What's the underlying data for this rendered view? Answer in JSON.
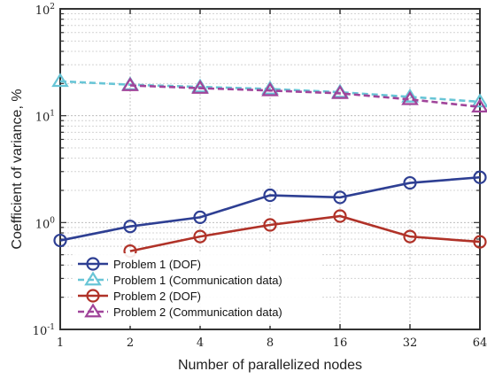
{
  "chart_data": {
    "type": "line",
    "title": "",
    "xlabel": "Number of parallelized nodes",
    "ylabel": "Coefficient of variance, %",
    "x_scale": "log2",
    "y_scale": "log10",
    "x_ticks": [
      1,
      2,
      4,
      8,
      16,
      32,
      64
    ],
    "x_tick_labels": [
      "1",
      "2",
      "4",
      "8",
      "16",
      "32",
      "64"
    ],
    "ylim": [
      0.1,
      100
    ],
    "y_ticks": [
      0.1,
      1,
      10,
      100
    ],
    "y_tick_labels": [
      {
        "base": "10",
        "exp": "-1"
      },
      {
        "base": "10",
        "exp": "0"
      },
      {
        "base": "10",
        "exp": "1"
      },
      {
        "base": "10",
        "exp": "2"
      }
    ],
    "grid": true,
    "legend_position": "bottom-left",
    "series": [
      {
        "name": "Problem 1 (DOF)",
        "color": "#2e3f93",
        "marker": "circle",
        "line": "solid",
        "x": [
          1,
          2,
          4,
          8,
          16,
          32,
          64
        ],
        "y": [
          0.68,
          0.92,
          1.12,
          1.8,
          1.72,
          2.35,
          2.65
        ]
      },
      {
        "name": "Problem 1 (Communication data)",
        "color": "#68c5d6",
        "marker": "triangle",
        "line": "dashed",
        "x": [
          1,
          2,
          4,
          8,
          16,
          32,
          64
        ],
        "y": [
          21,
          19.5,
          18.6,
          17.8,
          16.6,
          15,
          13.5
        ]
      },
      {
        "name": "Problem 2 (DOF)",
        "color": "#b03228",
        "marker": "circle",
        "line": "solid",
        "x": [
          2,
          4,
          8,
          16,
          32,
          64
        ],
        "y": [
          0.54,
          0.74,
          0.95,
          1.15,
          0.74,
          0.66
        ]
      },
      {
        "name": "Problem 2 (Communication data)",
        "color": "#a0449a",
        "marker": "triangle",
        "line": "dashed",
        "x": [
          2,
          4,
          8,
          16,
          32,
          64
        ],
        "y": [
          19.2,
          18.1,
          17.2,
          16.2,
          14.2,
          12.1
        ]
      }
    ]
  }
}
